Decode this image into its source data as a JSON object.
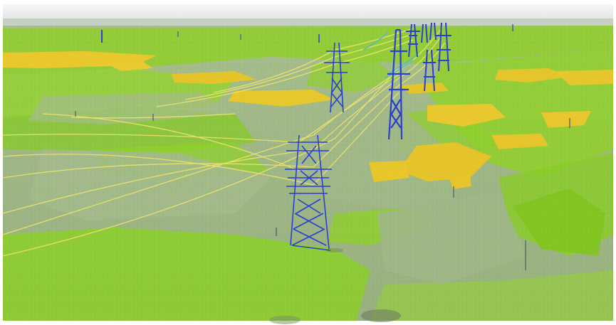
{
  "scene": {
    "kind": "lidar-point-cloud",
    "subject": "power-transmission-corridor",
    "colors": {
      "sky": "#eef0f1",
      "horizon": "#c9d3c8",
      "ground": "#9db58a",
      "vegetation": "#8fd12a",
      "vegetation_dark": "#6fb21c",
      "crops": "#e6c52c",
      "conductor": "#f2e36a",
      "conductor_near": "#4fb6d6",
      "tower": "#2b3fd0",
      "border": "#ffffff"
    }
  }
}
